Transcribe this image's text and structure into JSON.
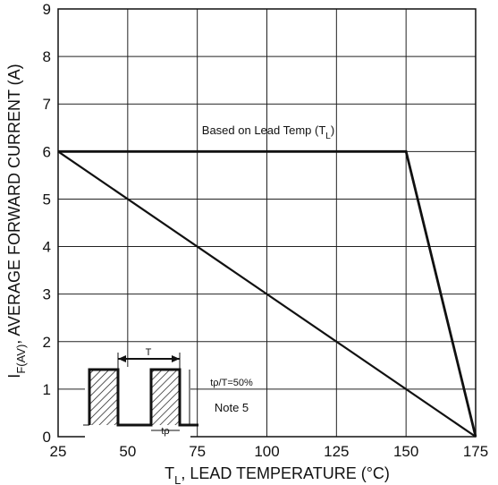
{
  "chart_data": {
    "type": "line",
    "xlabel_main": "T",
    "xlabel_sub": "L",
    "xlabel_rest": ", LEAD TEMPERATURE (°C)",
    "ylabel_main": "I",
    "ylabel_sub": "F(AV)",
    "ylabel_rest": ", AVERAGE FORWARD CURRENT (A)",
    "xlim": [
      25,
      175
    ],
    "ylim": [
      0,
      9
    ],
    "x_ticks": [
      25,
      50,
      75,
      100,
      125,
      150,
      175
    ],
    "y_ticks": [
      0,
      1,
      2,
      3,
      4,
      5,
      6,
      7,
      8,
      9
    ],
    "grid": true,
    "series": [
      {
        "name": "Based on Lead Temp (T_L)",
        "x": [
          25,
          150,
          175
        ],
        "y": [
          6,
          6,
          0
        ]
      },
      {
        "x": [
          25,
          175
        ],
        "y": [
          6,
          0
        ]
      }
    ],
    "annotations": {
      "curve_label_main": "Based on Lead Temp (T",
      "curve_label_sub": "L",
      "curve_label_close": ")",
      "duty_label": "tρ/T=50%",
      "note_label": "Note 5",
      "period_label": "T",
      "pulse_label": "tρ"
    }
  }
}
